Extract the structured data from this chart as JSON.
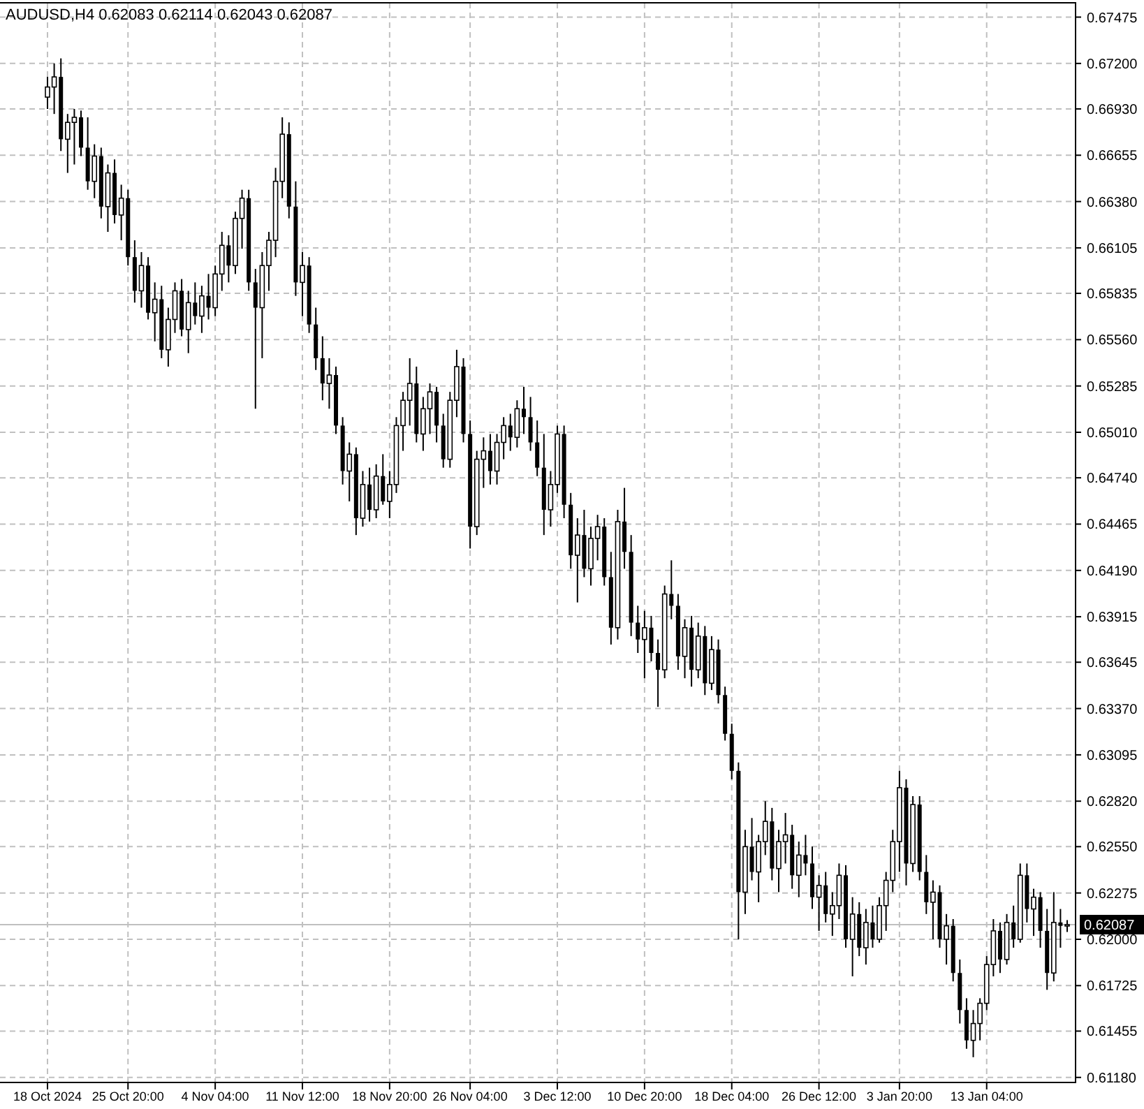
{
  "chart_data": {
    "type": "candlestick",
    "title": "AUDUSD,H4  0.62083 0.62114 0.62043 0.62087",
    "categories": [
      "18 Oct 2024",
      null,
      null,
      null,
      null,
      null,
      null,
      null,
      null,
      null,
      null,
      null,
      "25 Oct 20:00",
      null,
      null,
      null,
      null,
      null,
      null,
      null,
      null,
      null,
      null,
      null,
      null,
      "4 Nov 04:00",
      null,
      null,
      null,
      null,
      null,
      null,
      null,
      null,
      null,
      null,
      null,
      null,
      "11 Nov 12:00",
      null,
      null,
      null,
      null,
      null,
      null,
      null,
      null,
      null,
      null,
      null,
      null,
      "18 Nov 20:00",
      null,
      null,
      null,
      null,
      null,
      null,
      null,
      null,
      null,
      null,
      null,
      "26 Nov 04:00",
      null,
      null,
      null,
      null,
      null,
      null,
      null,
      null,
      null,
      null,
      null,
      null,
      "3 Dec 12:00",
      null,
      null,
      null,
      null,
      null,
      null,
      null,
      null,
      null,
      null,
      null,
      null,
      "10 Dec 20:00",
      null,
      null,
      null,
      null,
      null,
      null,
      null,
      null,
      null,
      null,
      null,
      null,
      "18 Dec 04:00",
      null,
      null,
      null,
      null,
      null,
      null,
      null,
      null,
      null,
      null,
      null,
      null,
      "26 Dec 12:00",
      null,
      null,
      null,
      null,
      null,
      null,
      null,
      null,
      null,
      null,
      null,
      "3 Jan 20:00",
      null,
      null,
      null,
      null,
      null,
      null,
      null,
      null,
      null,
      null,
      null,
      null,
      "13 Jan 04:00",
      null,
      null,
      null,
      null,
      null,
      null,
      null,
      null,
      null,
      null,
      null,
      null
    ],
    "ohlc": [
      [
        0.67,
        0.6712,
        0.6693,
        0.6706
      ],
      [
        0.6706,
        0.672,
        0.669,
        0.6712
      ],
      [
        0.6712,
        0.6723,
        0.6668,
        0.6675
      ],
      [
        0.6675,
        0.669,
        0.6655,
        0.6685
      ],
      [
        0.6685,
        0.6693,
        0.666,
        0.6688
      ],
      [
        0.6688,
        0.6692,
        0.6665,
        0.667
      ],
      [
        0.667,
        0.6688,
        0.6645,
        0.665
      ],
      [
        0.665,
        0.6672,
        0.664,
        0.6665
      ],
      [
        0.6665,
        0.667,
        0.6628,
        0.6635
      ],
      [
        0.6635,
        0.666,
        0.662,
        0.6655
      ],
      [
        0.6655,
        0.6663,
        0.6625,
        0.663
      ],
      [
        0.663,
        0.6648,
        0.6615,
        0.664
      ],
      [
        0.664,
        0.6645,
        0.66,
        0.6605
      ],
      [
        0.6605,
        0.6615,
        0.6578,
        0.6585
      ],
      [
        0.6585,
        0.6608,
        0.6575,
        0.66
      ],
      [
        0.66,
        0.6605,
        0.6568,
        0.6572
      ],
      [
        0.6572,
        0.659,
        0.6555,
        0.658
      ],
      [
        0.658,
        0.6588,
        0.6545,
        0.655
      ],
      [
        0.655,
        0.6575,
        0.654,
        0.6568
      ],
      [
        0.6568,
        0.659,
        0.656,
        0.6585
      ],
      [
        0.6585,
        0.6592,
        0.6558,
        0.6562
      ],
      [
        0.6562,
        0.6585,
        0.6548,
        0.6578
      ],
      [
        0.6578,
        0.659,
        0.6565,
        0.657
      ],
      [
        0.657,
        0.6588,
        0.656,
        0.6582
      ],
      [
        0.6582,
        0.6595,
        0.6568,
        0.6575
      ],
      [
        0.6575,
        0.66,
        0.657,
        0.6595
      ],
      [
        0.6595,
        0.662,
        0.6585,
        0.6612
      ],
      [
        0.6612,
        0.6618,
        0.659,
        0.66
      ],
      [
        0.66,
        0.6632,
        0.6595,
        0.6628
      ],
      [
        0.6628,
        0.6645,
        0.661,
        0.664
      ],
      [
        0.664,
        0.6645,
        0.6585,
        0.659
      ],
      [
        0.659,
        0.6598,
        0.6515,
        0.6575
      ],
      [
        0.6575,
        0.6608,
        0.6545,
        0.66
      ],
      [
        0.66,
        0.662,
        0.6585,
        0.6615
      ],
      [
        0.6615,
        0.6658,
        0.6605,
        0.665
      ],
      [
        0.665,
        0.6688,
        0.664,
        0.6678
      ],
      [
        0.6678,
        0.6685,
        0.6628,
        0.6635
      ],
      [
        0.6635,
        0.665,
        0.6582,
        0.659
      ],
      [
        0.659,
        0.6608,
        0.657,
        0.66
      ],
      [
        0.66,
        0.6605,
        0.656,
        0.6565
      ],
      [
        0.6565,
        0.6575,
        0.6538,
        0.6545
      ],
      [
        0.6545,
        0.6558,
        0.652,
        0.653
      ],
      [
        0.653,
        0.6545,
        0.6515,
        0.6535
      ],
      [
        0.6535,
        0.654,
        0.65,
        0.6505
      ],
      [
        0.6505,
        0.651,
        0.647,
        0.6478
      ],
      [
        0.6478,
        0.6495,
        0.646,
        0.6488
      ],
      [
        0.6488,
        0.6492,
        0.644,
        0.645
      ],
      [
        0.645,
        0.6478,
        0.6445,
        0.647
      ],
      [
        0.647,
        0.648,
        0.6448,
        0.6455
      ],
      [
        0.6455,
        0.6482,
        0.645,
        0.6475
      ],
      [
        0.6475,
        0.6488,
        0.6458,
        0.646
      ],
      [
        0.646,
        0.6478,
        0.645,
        0.647
      ],
      [
        0.647,
        0.651,
        0.6465,
        0.6505
      ],
      [
        0.6505,
        0.6525,
        0.649,
        0.652
      ],
      [
        0.652,
        0.6545,
        0.6505,
        0.653
      ],
      [
        0.653,
        0.654,
        0.6495,
        0.65
      ],
      [
        0.65,
        0.6522,
        0.649,
        0.6515
      ],
      [
        0.6515,
        0.653,
        0.65,
        0.6525
      ],
      [
        0.6525,
        0.6528,
        0.6495,
        0.6505
      ],
      [
        0.6505,
        0.6512,
        0.648,
        0.6485
      ],
      [
        0.6485,
        0.6525,
        0.648,
        0.652
      ],
      [
        0.652,
        0.655,
        0.651,
        0.654
      ],
      [
        0.654,
        0.6545,
        0.6495,
        0.65
      ],
      [
        0.65,
        0.6508,
        0.6432,
        0.6445
      ],
      [
        0.6445,
        0.649,
        0.644,
        0.6485
      ],
      [
        0.6485,
        0.6498,
        0.6468,
        0.649
      ],
      [
        0.649,
        0.65,
        0.647,
        0.6478
      ],
      [
        0.6478,
        0.65,
        0.647,
        0.6495
      ],
      [
        0.6495,
        0.651,
        0.6485,
        0.6505
      ],
      [
        0.6505,
        0.6512,
        0.649,
        0.6498
      ],
      [
        0.6498,
        0.652,
        0.6492,
        0.6515
      ],
      [
        0.6515,
        0.6528,
        0.65,
        0.651
      ],
      [
        0.651,
        0.6522,
        0.649,
        0.6495
      ],
      [
        0.6495,
        0.6508,
        0.6475,
        0.648
      ],
      [
        0.648,
        0.65,
        0.644,
        0.6455
      ],
      [
        0.6455,
        0.6478,
        0.6445,
        0.647
      ],
      [
        0.647,
        0.6505,
        0.6465,
        0.65
      ],
      [
        0.65,
        0.6505,
        0.645,
        0.6458
      ],
      [
        0.6458,
        0.6465,
        0.642,
        0.6428
      ],
      [
        0.6428,
        0.645,
        0.64,
        0.644
      ],
      [
        0.644,
        0.6455,
        0.6415,
        0.642
      ],
      [
        0.642,
        0.6445,
        0.641,
        0.6438
      ],
      [
        0.6438,
        0.6452,
        0.6425,
        0.6445
      ],
      [
        0.6445,
        0.645,
        0.641,
        0.6415
      ],
      [
        0.6415,
        0.643,
        0.6375,
        0.6385
      ],
      [
        0.6385,
        0.6455,
        0.6378,
        0.6448
      ],
      [
        0.6448,
        0.6468,
        0.642,
        0.643
      ],
      [
        0.643,
        0.644,
        0.638,
        0.6388
      ],
      [
        0.6388,
        0.6398,
        0.637,
        0.6378
      ],
      [
        0.6378,
        0.6395,
        0.6355,
        0.6385
      ],
      [
        0.6385,
        0.6392,
        0.6365,
        0.637
      ],
      [
        0.637,
        0.6378,
        0.6338,
        0.636
      ],
      [
        0.636,
        0.641,
        0.6355,
        0.6405
      ],
      [
        0.6405,
        0.6425,
        0.639,
        0.6398
      ],
      [
        0.6398,
        0.6405,
        0.636,
        0.6368
      ],
      [
        0.6368,
        0.639,
        0.6355,
        0.6385
      ],
      [
        0.6385,
        0.6392,
        0.635,
        0.636
      ],
      [
        0.636,
        0.6388,
        0.6355,
        0.638
      ],
      [
        0.638,
        0.6386,
        0.6345,
        0.6352
      ],
      [
        0.6352,
        0.638,
        0.6348,
        0.6372
      ],
      [
        0.6372,
        0.6378,
        0.634,
        0.6345
      ],
      [
        0.6345,
        0.635,
        0.6318,
        0.6322
      ],
      [
        0.6322,
        0.6328,
        0.6295,
        0.63
      ],
      [
        0.63,
        0.6305,
        0.62,
        0.6228
      ],
      [
        0.6228,
        0.6265,
        0.6215,
        0.6255
      ],
      [
        0.6255,
        0.6272,
        0.6235,
        0.624
      ],
      [
        0.624,
        0.6262,
        0.6222,
        0.6258
      ],
      [
        0.6258,
        0.6282,
        0.625,
        0.627
      ],
      [
        0.627,
        0.6278,
        0.6235,
        0.6242
      ],
      [
        0.6242,
        0.6265,
        0.6228,
        0.6258
      ],
      [
        0.6258,
        0.6275,
        0.6245,
        0.6262
      ],
      [
        0.6262,
        0.6268,
        0.623,
        0.6238
      ],
      [
        0.6238,
        0.6258,
        0.6225,
        0.625
      ],
      [
        0.625,
        0.6262,
        0.6238,
        0.6245
      ],
      [
        0.6245,
        0.6255,
        0.6218,
        0.6225
      ],
      [
        0.6225,
        0.6238,
        0.6205,
        0.6232
      ],
      [
        0.6232,
        0.624,
        0.621,
        0.6215
      ],
      [
        0.6215,
        0.6228,
        0.6202,
        0.622
      ],
      [
        0.622,
        0.6245,
        0.6212,
        0.6238
      ],
      [
        0.6238,
        0.6244,
        0.6195,
        0.62
      ],
      [
        0.62,
        0.6225,
        0.6178,
        0.6215
      ],
      [
        0.6215,
        0.6222,
        0.619,
        0.6195
      ],
      [
        0.6195,
        0.6218,
        0.6185,
        0.621
      ],
      [
        0.621,
        0.622,
        0.6195,
        0.62
      ],
      [
        0.62,
        0.6225,
        0.6198,
        0.622
      ],
      [
        0.622,
        0.624,
        0.6205,
        0.6235
      ],
      [
        0.6235,
        0.6265,
        0.6228,
        0.6258
      ],
      [
        0.6258,
        0.63,
        0.624,
        0.629
      ],
      [
        0.629,
        0.6295,
        0.6232,
        0.6245
      ],
      [
        0.6245,
        0.6285,
        0.624,
        0.628
      ],
      [
        0.628,
        0.6285,
        0.6235,
        0.624
      ],
      [
        0.624,
        0.625,
        0.6215,
        0.6222
      ],
      [
        0.6222,
        0.6235,
        0.62,
        0.6228
      ],
      [
        0.6228,
        0.6232,
        0.6195,
        0.62
      ],
      [
        0.62,
        0.6215,
        0.6185,
        0.6208
      ],
      [
        0.6208,
        0.6212,
        0.6175,
        0.618
      ],
      [
        0.618,
        0.6188,
        0.615,
        0.6158
      ],
      [
        0.6158,
        0.6165,
        0.6135,
        0.614
      ],
      [
        0.614,
        0.6158,
        0.613,
        0.615
      ],
      [
        0.615,
        0.6165,
        0.614,
        0.6162
      ],
      [
        0.6162,
        0.619,
        0.6158,
        0.6185
      ],
      [
        0.6185,
        0.6212,
        0.6178,
        0.6205
      ],
      [
        0.6205,
        0.621,
        0.618,
        0.6188
      ],
      [
        0.6188,
        0.6215,
        0.6185,
        0.621
      ],
      [
        0.621,
        0.622,
        0.6195,
        0.62
      ],
      [
        0.62,
        0.6245,
        0.6198,
        0.6238
      ],
      [
        0.6238,
        0.6245,
        0.621,
        0.6218
      ],
      [
        0.6218,
        0.623,
        0.6202,
        0.6225
      ],
      [
        0.6225,
        0.6228,
        0.6195,
        0.6205
      ],
      [
        0.6205,
        0.6218,
        0.617,
        0.618
      ],
      [
        0.618,
        0.6228,
        0.6175,
        0.621
      ],
      [
        0.621,
        0.6218,
        0.6195,
        0.6208
      ],
      [
        0.62083,
        0.62114,
        0.62043,
        0.62087
      ]
    ],
    "color": "#000000",
    "ylim": [
      0.6115,
      0.6756
    ],
    "yticks": [
      {
        "value": 0.6118,
        "label": "0.61180"
      },
      0.61455,
      0.61725,
      {
        "value": 0.62,
        "label": "0.62000"
      },
      0.62275,
      {
        "value": 0.6255,
        "label": "0.62550"
      },
      {
        "value": 0.6282,
        "label": "0.62820"
      },
      0.63095,
      {
        "value": 0.6337,
        "label": "0.63370"
      },
      0.63645,
      0.63915,
      {
        "value": 0.6419,
        "label": "0.64190"
      },
      0.64465,
      {
        "value": 0.6474,
        "label": "0.64740"
      },
      {
        "value": 0.6501,
        "label": "0.65010"
      },
      0.65285,
      {
        "value": 0.6556,
        "label": "0.65560"
      },
      0.65835,
      0.66105,
      {
        "value": 0.6638,
        "label": "0.66380"
      },
      0.66655,
      {
        "value": 0.6693,
        "label": "0.66930"
      },
      {
        "value": 0.672,
        "label": "0.67200"
      },
      0.67475
    ],
    "grid": true,
    "ref_lines": [
      {
        "axis": "y",
        "value": 0.62087,
        "label": "0.62087",
        "color": "#c0c0c0"
      }
    ]
  }
}
